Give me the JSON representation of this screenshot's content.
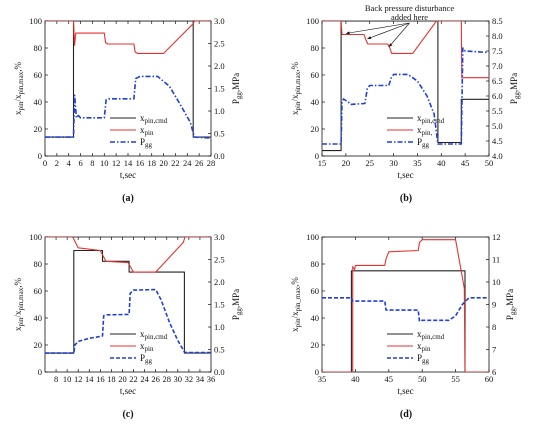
{
  "figure": {
    "panel_labels": [
      "(a)",
      "(b)",
      "(c)",
      "(d)"
    ]
  },
  "colors": {
    "cmd": "#222222",
    "xpin": "#e8312f",
    "pgg": "#1f3fd6"
  },
  "chart_data": [
    {
      "id": "a",
      "type": "line",
      "panel_label": "(a)",
      "xlabel": "t,sec",
      "ylabel": "xₚᵢₙ/xₚᵢₙ,max,%",
      "ylabel_parts": [
        "x",
        "pin",
        "/x",
        "pin,max",
        ",%"
      ],
      "y2label_parts": [
        "P",
        "gg",
        ",MPa"
      ],
      "xlim": [
        0,
        28
      ],
      "xticks": [
        0,
        2,
        4,
        6,
        8,
        10,
        12,
        14,
        16,
        18,
        20,
        22,
        24,
        26,
        28
      ],
      "ylim": [
        0,
        100
      ],
      "yticks": [
        0,
        20,
        40,
        60,
        80,
        100
      ],
      "y2lim": [
        0,
        3.0
      ],
      "y2ticks": [
        "0.0",
        "0.5",
        "1.0",
        "1.5",
        "2.0",
        "2.5",
        "3.0"
      ],
      "legend": {
        "position": "lower-center",
        "entries": [
          "x_pin,cmd",
          "x_pin",
          "Pgg"
        ],
        "labels": [
          [
            "x",
            "pin,cmd"
          ],
          [
            "x",
            "pin"
          ],
          [
            "P",
            "gg"
          ]
        ]
      },
      "series": [
        {
          "name": "x_pin,cmd",
          "axis": "left",
          "style": "solid",
          "x": [
            0,
            4.8,
            4.8,
            25,
            25,
            28
          ],
          "y": [
            14,
            14,
            100,
            100,
            14,
            14
          ]
        },
        {
          "name": "x_pin",
          "axis": "left",
          "style": "solid",
          "x": [
            0,
            4.8,
            5.0,
            5.2,
            5.8,
            10,
            10.2,
            10.6,
            15,
            15.2,
            15.6,
            20,
            25,
            25.2,
            28
          ],
          "y": [
            100,
            100,
            82,
            91,
            91,
            91,
            84,
            83,
            83,
            77,
            76,
            76,
            98,
            100,
            100
          ]
        },
        {
          "name": "Pgg",
          "axis": "right",
          "style": "dashdot",
          "x": [
            0,
            4.8,
            5.0,
            5.3,
            5.6,
            6,
            10,
            10.3,
            10.8,
            15,
            15.3,
            16,
            19,
            21,
            23,
            24.5,
            25.2,
            28
          ],
          "y": [
            0.42,
            0.42,
            1.35,
            0.85,
            0.9,
            0.85,
            0.85,
            1.25,
            1.27,
            1.27,
            1.72,
            1.77,
            1.77,
            1.55,
            1.1,
            0.75,
            0.42,
            0.4
          ]
        }
      ]
    },
    {
      "id": "b",
      "type": "line",
      "panel_label": "(b)",
      "xlabel": "t,sec",
      "ylabel_parts": [
        "x",
        "pin",
        "/x",
        "pin,max",
        ",%"
      ],
      "y2label_parts": [
        "P",
        "gg",
        ",MPa"
      ],
      "xlim": [
        15,
        50
      ],
      "xticks": [
        15,
        20,
        25,
        30,
        35,
        40,
        45,
        50
      ],
      "ylim": [
        0,
        100
      ],
      "yticks": [
        0,
        20,
        40,
        60,
        80,
        100
      ],
      "y2lim": [
        4.0,
        8.5
      ],
      "y2ticks": [
        "4.0",
        "4.5",
        "5.0",
        "5.5",
        "6.0",
        "6.5",
        "7.0",
        "7.5",
        "8.0",
        "8.5"
      ],
      "annotation": {
        "text": [
          "Back pressure disturbance",
          "added here"
        ],
        "arrows_to_x": [
          20,
          24.5,
          29
        ]
      },
      "legend": {
        "position": "lower-center",
        "entries": [
          "x_pin,cmd",
          "x_pin,",
          "Pgg"
        ],
        "labels": [
          [
            "x",
            "pin,cmd"
          ],
          [
            "x",
            "pin,"
          ],
          [
            "P",
            "gg"
          ]
        ]
      },
      "series": [
        {
          "name": "x_pin,cmd",
          "axis": "left",
          "style": "solid",
          "x": [
            15,
            19,
            19,
            39.3,
            39.3,
            44.2,
            44.2,
            50
          ],
          "y": [
            4,
            4,
            100,
            100,
            10,
            10,
            42,
            42
          ]
        },
        {
          "name": "x_pin,",
          "axis": "left",
          "style": "solid",
          "x": [
            15,
            19,
            19.2,
            19.6,
            20,
            21,
            23.8,
            24.2,
            24.6,
            28.8,
            29.2,
            29.6,
            34,
            39,
            39.3,
            44.2,
            44.3,
            50
          ],
          "y": [
            100,
            100,
            90,
            90,
            90,
            90,
            90,
            86,
            83,
            83,
            80,
            76,
            76,
            100,
            100,
            100,
            58,
            58
          ]
        },
        {
          "name": "Pgg",
          "axis": "right",
          "style": "dashdot",
          "x": [
            15,
            19,
            19.2,
            19.5,
            20.5,
            21,
            24,
            24.5,
            25,
            29,
            29.5,
            30,
            33,
            35,
            37,
            38.5,
            39.3,
            44.2,
            44.5,
            45,
            50
          ],
          "y": [
            4.4,
            4.4,
            5.8,
            5.9,
            5.8,
            5.72,
            5.75,
            6.25,
            6.35,
            6.35,
            6.6,
            6.72,
            6.72,
            6.5,
            6.0,
            5.4,
            4.4,
            4.4,
            7.6,
            7.5,
            7.45
          ]
        }
      ]
    },
    {
      "id": "c",
      "type": "line",
      "panel_label": "(c)",
      "xlabel": "t,sec",
      "ylabel_parts": [
        "x",
        "pin",
        "/x",
        "pin,max",
        ",%"
      ],
      "y2label_parts": [
        "P",
        "gg",
        ",MPa"
      ],
      "xlim": [
        6,
        36
      ],
      "xticks": [
        8,
        10,
        12,
        14,
        16,
        18,
        20,
        22,
        24,
        26,
        28,
        30,
        32,
        34,
        36
      ],
      "ylim": [
        0,
        100
      ],
      "yticks": [
        0,
        20,
        40,
        60,
        80,
        100
      ],
      "y2lim": [
        0,
        3.0
      ],
      "y2ticks": [
        "0.0",
        "0.5",
        "1.0",
        "1.5",
        "2.0",
        "2.5",
        "3.0"
      ],
      "legend": {
        "position": "lower-center",
        "entries": [
          "x_pin,cmd",
          "x_pin",
          "Pgg"
        ],
        "labels": [
          [
            "x",
            "pin,cmd"
          ],
          [
            "x",
            "pin"
          ],
          [
            "P",
            "gg"
          ]
        ]
      },
      "series": [
        {
          "name": "x_pin,cmd",
          "axis": "left",
          "style": "solid",
          "x": [
            6,
            11.2,
            11.2,
            16.4,
            16.4,
            21.2,
            21.2,
            26.3,
            26.3,
            31.2,
            31.2,
            36
          ],
          "y": [
            14,
            14,
            90,
            90,
            82,
            82,
            74,
            74,
            74,
            74,
            14,
            14
          ]
        },
        {
          "name": "x_pin",
          "axis": "left",
          "style": "solid",
          "x": [
            6,
            11,
            12,
            16,
            17,
            21,
            22,
            26,
            31,
            31.3,
            36
          ],
          "y": [
            100,
            100,
            92,
            90,
            82,
            81,
            74,
            74,
            96,
            100,
            100
          ]
        },
        {
          "name": "Pgg",
          "axis": "right",
          "style": "dashed",
          "x": [
            6,
            11.2,
            11.4,
            12,
            14,
            16.4,
            16.6,
            17,
            21.2,
            21.4,
            22,
            26,
            27,
            28.5,
            30,
            31.2,
            31.5,
            36
          ],
          "y": [
            0.42,
            0.42,
            0.6,
            0.68,
            0.75,
            0.8,
            1.25,
            1.27,
            1.28,
            1.75,
            1.82,
            1.83,
            1.6,
            1.1,
            0.7,
            0.45,
            0.43,
            0.43
          ]
        }
      ]
    },
    {
      "id": "d",
      "type": "line",
      "panel_label": "(d)",
      "xlabel": "t,sec",
      "ylabel_parts": [
        "x",
        "pin",
        "/x",
        "pin_max",
        ",%"
      ],
      "y2label_parts": [
        "P",
        "gg",
        ",MPa"
      ],
      "xlim": [
        35,
        60
      ],
      "xticks": [
        35,
        40,
        45,
        50,
        55,
        60
      ],
      "ylim": [
        0,
        100
      ],
      "yticks": [
        0,
        20,
        40,
        60,
        80,
        100
      ],
      "y2lim": [
        6,
        12
      ],
      "y2ticks": [
        "6",
        "7",
        "8",
        "9",
        "10",
        "11",
        "12"
      ],
      "legend": {
        "position": "lower-center",
        "entries": [
          "x_pin,cmd",
          "x_pin",
          "Pgg"
        ],
        "labels": [
          [
            "x",
            "pin,cmd"
          ],
          [
            "x",
            "pin"
          ],
          [
            "P",
            "gg"
          ]
        ]
      },
      "series": [
        {
          "name": "x_pin,cmd",
          "axis": "left",
          "style": "solid",
          "x": [
            35,
            39.4,
            39.4,
            56.4,
            56.4,
            60
          ],
          "y": [
            0,
            0,
            75,
            75,
            0,
            0
          ]
        },
        {
          "name": "x_pin",
          "axis": "left",
          "style": "solid",
          "x": [
            35,
            39.6,
            39.6,
            39.9,
            40,
            44.4,
            44.6,
            45,
            49.4,
            49.6,
            50,
            54,
            55,
            56.3,
            56.4,
            60
          ],
          "y": [
            0,
            0,
            78,
            76,
            79,
            79,
            84,
            89,
            90,
            96,
            98,
            98,
            98,
            62,
            0,
            0
          ]
        },
        {
          "name": "Pgg",
          "axis": "right",
          "style": "dashed",
          "x": [
            35,
            39.4,
            39.5,
            40,
            44.4,
            44.6,
            45,
            49.4,
            49.6,
            50,
            54,
            55,
            56,
            57,
            60
          ],
          "y": [
            9.3,
            9.3,
            9.15,
            9.15,
            9.15,
            8.75,
            8.75,
            8.75,
            8.25,
            8.3,
            8.3,
            8.5,
            9.0,
            9.3,
            9.3
          ]
        }
      ]
    }
  ]
}
